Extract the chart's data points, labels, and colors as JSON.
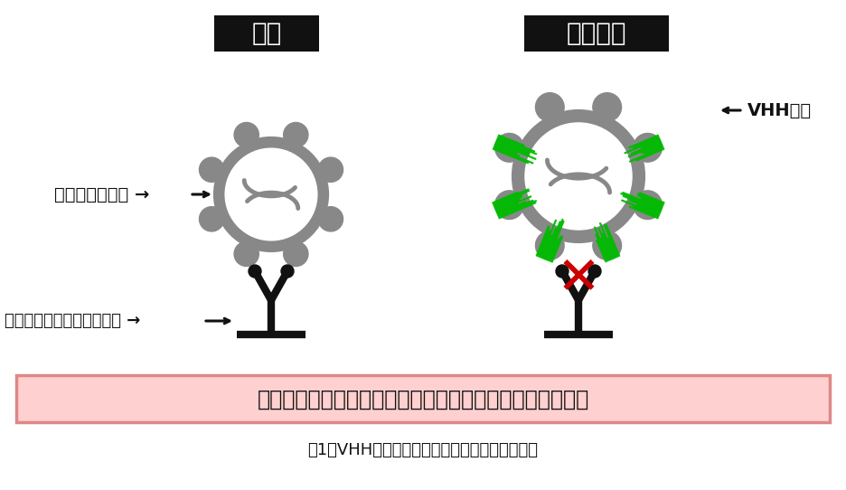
{
  "bg_color": "#ffffff",
  "gray": "#888888",
  "gray_dark": "#555555",
  "black": "#111111",
  "green": "#00bb00",
  "red": "#cc0000",
  "pink_bg": "#ffd0d0",
  "pink_border": "#dd8888",
  "label_infection": "感染",
  "label_suppression": "感染抑制",
  "label_coronavirus": "コロナウイルス →",
  "label_receptor": "ヒト細胞に存在する受容体 →",
  "label_vhh": "← VHH抗体",
  "label_bottom": "抗体が結合することで、ウイルスの受容体への結合を阻害",
  "label_caption": "図1　VHH抗体によるコロナウイルスの感染抑制",
  "figw": 9.36,
  "figh": 5.42,
  "dpi": 100
}
